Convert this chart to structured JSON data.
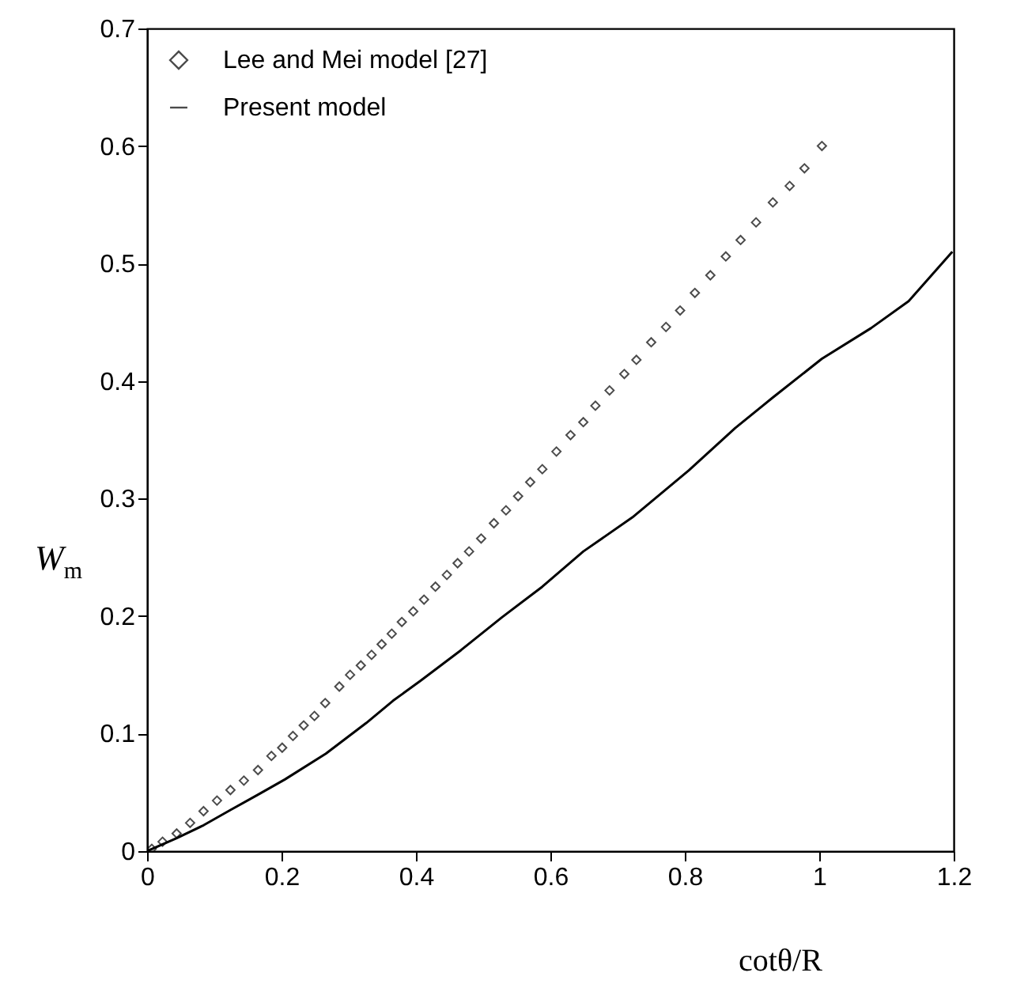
{
  "chart_data": {
    "type": "line",
    "xlabel": "cotθ/R",
    "ylabel": "W$_{m}$",
    "xlim": [
      0,
      1.2
    ],
    "xticks": [
      0,
      0.2,
      0.4,
      0.6,
      0.8,
      1,
      1.2
    ],
    "ylim": [
      0,
      0.7
    ],
    "yticks": [
      0,
      0.1,
      0.2,
      0.3,
      0.4,
      0.5,
      0.6,
      0.7
    ],
    "grid": false,
    "legend": "top left",
    "line_style": "solid",
    "series": [
      {
        "name": "Lee and Mei model [27]",
        "type": "scatter",
        "marker": "diamond",
        "color": "#000000",
        "x": [
          0.007,
          0.023,
          0.044,
          0.064,
          0.084,
          0.104,
          0.124,
          0.144,
          0.165,
          0.185,
          0.201,
          0.217,
          0.233,
          0.249,
          0.265,
          0.286,
          0.302,
          0.318,
          0.334,
          0.349,
          0.364,
          0.379,
          0.396,
          0.412,
          0.429,
          0.446,
          0.462,
          0.479,
          0.497,
          0.516,
          0.534,
          0.552,
          0.57,
          0.588,
          0.609,
          0.63,
          0.649,
          0.667,
          0.688,
          0.71,
          0.728,
          0.75,
          0.772,
          0.793,
          0.815,
          0.838,
          0.861,
          0.883,
          0.906,
          0.931,
          0.956,
          0.978,
          1.004
        ],
        "values": [
          0.002,
          0.008,
          0.015,
          0.024,
          0.034,
          0.043,
          0.052,
          0.06,
          0.069,
          0.081,
          0.088,
          0.098,
          0.107,
          0.115,
          0.126,
          0.14,
          0.15,
          0.158,
          0.167,
          0.176,
          0.185,
          0.195,
          0.204,
          0.214,
          0.225,
          0.235,
          0.245,
          0.255,
          0.266,
          0.279,
          0.29,
          0.302,
          0.314,
          0.325,
          0.34,
          0.354,
          0.365,
          0.379,
          0.392,
          0.406,
          0.418,
          0.433,
          0.446,
          0.46,
          0.475,
          0.49,
          0.506,
          0.52,
          0.535,
          0.552,
          0.566,
          0.581,
          0.6
        ]
      },
      {
        "name": "Present model",
        "type": "line",
        "color": "#000000",
        "x": [
          0,
          0.044,
          0.084,
          0.124,
          0.165,
          0.205,
          0.266,
          0.326,
          0.366,
          0.407,
          0.467,
          0.528,
          0.588,
          0.649,
          0.722,
          0.806,
          0.875,
          0.931,
          1.004,
          1.077,
          1.133,
          1.198
        ],
        "values": [
          0,
          0.011,
          0.022,
          0.035,
          0.048,
          0.061,
          0.083,
          0.109,
          0.128,
          0.145,
          0.171,
          0.199,
          0.225,
          0.255,
          0.284,
          0.324,
          0.36,
          0.386,
          0.419,
          0.445,
          0.468,
          0.51
        ]
      }
    ]
  }
}
